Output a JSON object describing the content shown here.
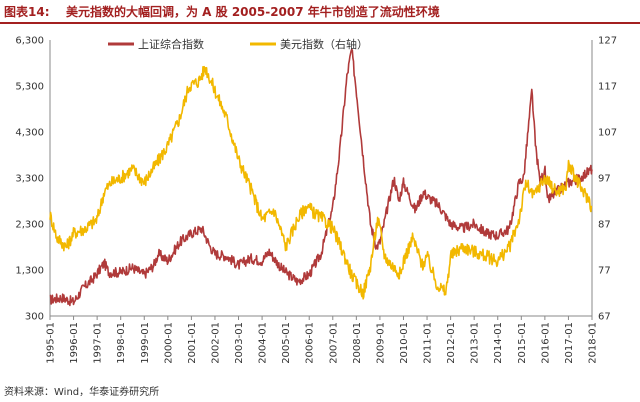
{
  "header": {
    "figure_label": "图表14:",
    "title": "美元指数的大幅回调，为 A 股 2005-2007 年牛市创造了流动性环境"
  },
  "footer": {
    "source": "资料来源：Wind，华泰证券研究所"
  },
  "chart_data": {
    "type": "line",
    "title": "美元指数的大幅回调，为 A 股 2005-2007 年牛市创造了流动性环境",
    "x_tick_labels": [
      "1995-01",
      "1996-01",
      "1997-01",
      "1998-01",
      "1999-01",
      "2000-01",
      "2001-01",
      "2002-01",
      "2003-01",
      "2004-01",
      "2005-01",
      "2006-01",
      "2007-01",
      "2008-01",
      "2009-01",
      "2010-01",
      "2011-01",
      "2012-01",
      "2013-01",
      "2014-01",
      "2015-01",
      "2016-01",
      "2017-01",
      "2018-01"
    ],
    "y_left": {
      "ticks": [
        "300",
        "1,300",
        "2,300",
        "3,300",
        "4,300",
        "5,300",
        "6,300"
      ],
      "min": 300,
      "max": 6300
    },
    "y_right": {
      "ticks": [
        "67",
        "77",
        "87",
        "97",
        "107",
        "117",
        "127"
      ],
      "min": 67,
      "max": 127
    },
    "legend_position": "top",
    "grid": false,
    "series": [
      {
        "name": "上证综合指数",
        "axis": "left",
        "color": "#b03a3a",
        "x": [
          1995.0,
          1995.5,
          1996.0,
          1996.4,
          1996.9,
          1997.3,
          1997.5,
          1998.0,
          1998.5,
          1999.0,
          1999.4,
          1999.6,
          2000.0,
          2000.5,
          2001.0,
          2001.45,
          2001.8,
          2002.0,
          2002.5,
          2003.0,
          2003.5,
          2004.0,
          2004.3,
          2004.8,
          2005.0,
          2005.5,
          2006.0,
          2006.5,
          2007.0,
          2007.3,
          2007.6,
          2007.8,
          2008.0,
          2008.3,
          2008.6,
          2008.85,
          2009.0,
          2009.6,
          2009.8,
          2010.0,
          2010.5,
          2010.85,
          2011.0,
          2011.5,
          2012.0,
          2012.5,
          2013.0,
          2013.5,
          2014.0,
          2014.5,
          2014.9,
          2015.1,
          2015.45,
          2015.6,
          2015.8,
          2016.0,
          2016.1,
          2016.5,
          2017.0,
          2017.5,
          2018.0
        ],
        "values": [
          650,
          700,
          600,
          900,
          1150,
          1450,
          1250,
          1250,
          1350,
          1200,
          1400,
          1650,
          1500,
          1900,
          2100,
          2200,
          1800,
          1650,
          1600,
          1400,
          1550,
          1500,
          1700,
          1350,
          1250,
          1050,
          1200,
          1650,
          2650,
          3900,
          5500,
          6100,
          5200,
          3700,
          2300,
          1800,
          1900,
          3300,
          2800,
          3200,
          2600,
          3000,
          2900,
          2700,
          2300,
          2200,
          2300,
          2100,
          2050,
          2200,
          3200,
          3300,
          5200,
          4000,
          3200,
          3500,
          2800,
          3000,
          3200,
          3300,
          3500
        ]
      },
      {
        "name": "美元指数（右轴）",
        "axis": "right",
        "color": "#f2b800",
        "x": [
          1995.0,
          1995.3,
          1995.7,
          1996.0,
          1996.5,
          1997.0,
          1997.3,
          1997.6,
          1998.0,
          1998.5,
          1999.0,
          1999.5,
          2000.0,
          2000.5,
          2000.9,
          2001.3,
          2001.6,
          2002.0,
          2002.5,
          2003.0,
          2003.5,
          2004.0,
          2004.5,
          2004.9,
          2005.0,
          2005.5,
          2005.9,
          2006.3,
          2006.6,
          2007.0,
          2007.5,
          2007.8,
          2008.0,
          2008.3,
          2008.6,
          2008.9,
          2009.0,
          2009.2,
          2009.5,
          2009.9,
          2010.0,
          2010.4,
          2010.8,
          2011.0,
          2011.4,
          2011.8,
          2012.0,
          2012.5,
          2013.0,
          2013.5,
          2014.0,
          2014.5,
          2014.9,
          2015.2,
          2015.5,
          2016.0,
          2016.5,
          2016.9,
          2017.0,
          2017.5,
          2017.9,
          2018.0
        ],
        "values": [
          89,
          84,
          82,
          85,
          86,
          88,
          94,
          96,
          97,
          99,
          96,
          100,
          104,
          110,
          117,
          118,
          121,
          116,
          110,
          101,
          95,
          88,
          90,
          84,
          82,
          88,
          91,
          89,
          88,
          86,
          80,
          76,
          74,
          72,
          78,
          88,
          86,
          80,
          78,
          76,
          79,
          84,
          78,
          80,
          74,
          72,
          80,
          82,
          81,
          80,
          79,
          82,
          88,
          96,
          93,
          97,
          94,
          95,
          100,
          95,
          92,
          90
        ]
      }
    ]
  }
}
